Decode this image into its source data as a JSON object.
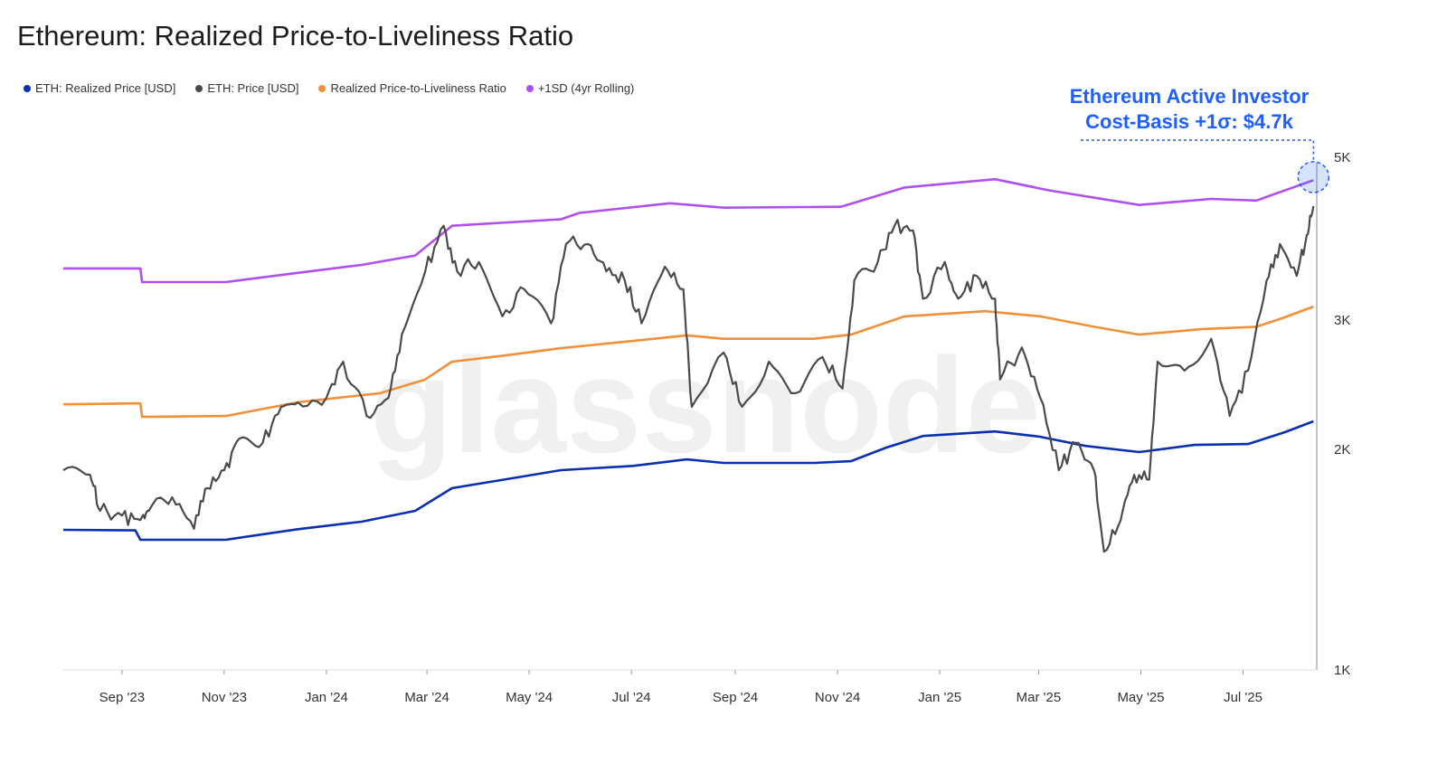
{
  "chart_data": {
    "type": "line",
    "title": "Ethereum: Realized Price-to-Liveliness Ratio",
    "x_unit": "days since start_date",
    "start_date": "2023-07-28",
    "y_scale": "log",
    "ylim": [
      1000,
      5300
    ],
    "yticks": [
      {
        "value": 1000,
        "label": "1K"
      },
      {
        "value": 2000,
        "label": "2K"
      },
      {
        "value": 3000,
        "label": "3K"
      },
      {
        "value": 5000,
        "label": "5K"
      }
    ],
    "xticks": [
      {
        "day": 35,
        "label": "Sep '23"
      },
      {
        "day": 96,
        "label": "Nov '23"
      },
      {
        "day": 157,
        "label": "Jan '24"
      },
      {
        "day": 217,
        "label": "Mar '24"
      },
      {
        "day": 278,
        "label": "May '24"
      },
      {
        "day": 339,
        "label": "Jul '24"
      },
      {
        "day": 401,
        "label": "Sep '24"
      },
      {
        "day": 462,
        "label": "Nov '24"
      },
      {
        "day": 523,
        "label": "Jan '25"
      },
      {
        "day": 582,
        "label": "Mar '25"
      },
      {
        "day": 643,
        "label": "May '25"
      },
      {
        "day": 704,
        "label": "Jul '25"
      }
    ],
    "legend_position": "top-left",
    "watermark": "glassnode",
    "series": [
      {
        "name": "+1SD (4yr Rolling)",
        "color": "#b04ff0",
        "points": [
          [
            0,
            3529
          ],
          [
            46,
            3529
          ],
          [
            47,
            3380
          ],
          [
            97,
            3380
          ],
          [
            135,
            3469
          ],
          [
            178,
            3568
          ],
          [
            210,
            3675
          ],
          [
            232,
            4035
          ],
          [
            297,
            4118
          ],
          [
            308,
            4200
          ],
          [
            362,
            4330
          ],
          [
            394,
            4270
          ],
          [
            464,
            4282
          ],
          [
            502,
            4550
          ],
          [
            556,
            4670
          ],
          [
            588,
            4510
          ],
          [
            642,
            4307
          ],
          [
            685,
            4390
          ],
          [
            712,
            4367
          ],
          [
            746,
            4655
          ]
        ]
      },
      {
        "name": "Realized Price-to-Liveliness Ratio",
        "color": "#f0913a",
        "points": [
          [
            0,
            2303
          ],
          [
            46,
            2310
          ],
          [
            47,
            2214
          ],
          [
            97,
            2220
          ],
          [
            140,
            2318
          ],
          [
            189,
            2385
          ],
          [
            216,
            2490
          ],
          [
            232,
            2633
          ],
          [
            264,
            2685
          ],
          [
            297,
            2747
          ],
          [
            340,
            2810
          ],
          [
            372,
            2860
          ],
          [
            394,
            2829
          ],
          [
            448,
            2829
          ],
          [
            470,
            2866
          ],
          [
            502,
            3036
          ],
          [
            550,
            3085
          ],
          [
            583,
            3036
          ],
          [
            615,
            2938
          ],
          [
            642,
            2866
          ],
          [
            680,
            2917
          ],
          [
            712,
            2938
          ],
          [
            729,
            3027
          ],
          [
            746,
            3130
          ]
        ]
      },
      {
        "name": "ETH: Realized Price [USD]",
        "color": "#0a2fb0",
        "points": [
          [
            0,
            1553
          ],
          [
            43,
            1550
          ],
          [
            46,
            1505
          ],
          [
            97,
            1505
          ],
          [
            140,
            1556
          ],
          [
            178,
            1593
          ],
          [
            210,
            1648
          ],
          [
            232,
            1770
          ],
          [
            264,
            1820
          ],
          [
            297,
            1873
          ],
          [
            340,
            1898
          ],
          [
            372,
            1937
          ],
          [
            394,
            1916
          ],
          [
            448,
            1916
          ],
          [
            470,
            1926
          ],
          [
            491,
            2010
          ],
          [
            513,
            2085
          ],
          [
            556,
            2115
          ],
          [
            583,
            2080
          ],
          [
            610,
            2021
          ],
          [
            642,
            1982
          ],
          [
            675,
            2027
          ],
          [
            707,
            2033
          ],
          [
            729,
            2110
          ],
          [
            746,
            2183
          ]
        ]
      },
      {
        "name": "ETH: Price [USD]",
        "color": "#4a4a4a",
        "points": [
          [
            0,
            1873
          ],
          [
            16,
            1846
          ],
          [
            22,
            1648
          ],
          [
            35,
            1624
          ],
          [
            46,
            1601
          ],
          [
            51,
            1648
          ],
          [
            65,
            1720
          ],
          [
            78,
            1558
          ],
          [
            86,
            1770
          ],
          [
            96,
            1873
          ],
          [
            105,
            2068
          ],
          [
            119,
            2040
          ],
          [
            130,
            2285
          ],
          [
            140,
            2318
          ],
          [
            157,
            2350
          ],
          [
            167,
            2633
          ],
          [
            181,
            2220
          ],
          [
            194,
            2350
          ],
          [
            202,
            2866
          ],
          [
            216,
            3497
          ],
          [
            227,
            4035
          ],
          [
            235,
            3497
          ],
          [
            248,
            3600
          ],
          [
            262,
            3036
          ],
          [
            275,
            3306
          ],
          [
            291,
            2970
          ],
          [
            300,
            3810
          ],
          [
            313,
            3810
          ],
          [
            324,
            3497
          ],
          [
            335,
            3397
          ],
          [
            345,
            2970
          ],
          [
            359,
            3548
          ],
          [
            370,
            3306
          ],
          [
            375,
            2285
          ],
          [
            394,
            2710
          ],
          [
            405,
            2285
          ],
          [
            421,
            2633
          ],
          [
            437,
            2385
          ],
          [
            453,
            2672
          ],
          [
            465,
            2420
          ],
          [
            472,
            3397
          ],
          [
            486,
            3600
          ],
          [
            496,
            4035
          ],
          [
            507,
            3977
          ],
          [
            513,
            3208
          ],
          [
            526,
            3600
          ],
          [
            534,
            3208
          ],
          [
            545,
            3447
          ],
          [
            556,
            3208
          ],
          [
            559,
            2490
          ],
          [
            572,
            2753
          ],
          [
            583,
            2350
          ],
          [
            594,
            1873
          ],
          [
            604,
            2040
          ],
          [
            615,
            1873
          ],
          [
            621,
            1450
          ],
          [
            631,
            1601
          ],
          [
            639,
            1846
          ],
          [
            648,
            1818
          ],
          [
            653,
            2633
          ],
          [
            669,
            2560
          ],
          [
            685,
            2829
          ],
          [
            696,
            2220
          ],
          [
            707,
            2560
          ],
          [
            718,
            3397
          ],
          [
            726,
            3810
          ],
          [
            736,
            3447
          ],
          [
            742,
            3918
          ],
          [
            746,
            4290
          ]
        ]
      }
    ],
    "annotation": {
      "line1": "Ethereum Active Investor",
      "line2": "Cost-Basis +1σ: $4.7k",
      "value": 4700,
      "day": 746
    }
  },
  "legend": [
    {
      "label": "ETH: Realized Price [USD]",
      "color": "#0a2fb0"
    },
    {
      "label": "ETH: Price [USD]",
      "color": "#4a4a4a"
    },
    {
      "label": "Realized Price-to-Liveliness Ratio",
      "color": "#f0913a"
    },
    {
      "label": "+1SD (4yr Rolling)",
      "color": "#b04ff0"
    }
  ]
}
